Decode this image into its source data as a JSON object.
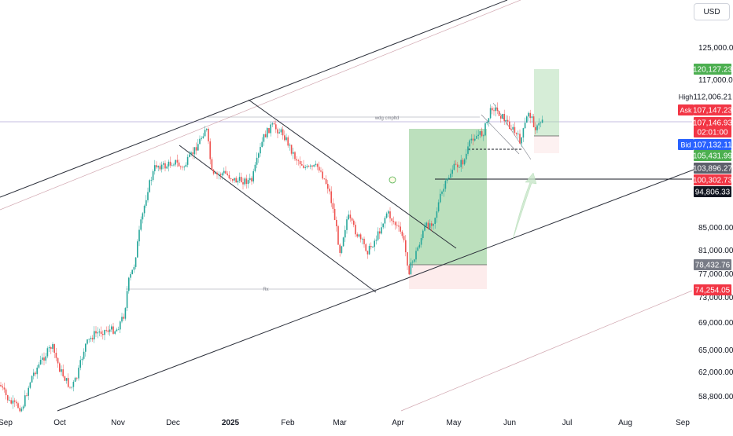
{
  "currency_button": "USD",
  "annotations": {
    "top_level_label": "wdg cmpltd",
    "bottom_level_label": "Rx"
  },
  "colors": {
    "up": "#26a69a",
    "down": "#ef5350",
    "trendline": "#2a2e39",
    "zone_green": "#a5d6a7",
    "zone_red": "#fbe0e0",
    "label_green": "#4caf50",
    "label_red": "#f23645",
    "label_blue": "#2962ff",
    "label_black": "#131722",
    "label_gray": "#787b86"
  },
  "chart_data": {
    "type": "candlestick",
    "symbol_currency": "USD",
    "x_axis_ticks": [
      "Sep",
      "Oct",
      "Nov",
      "Dec",
      "2025",
      "Feb",
      "Mar",
      "Apr",
      "May",
      "Jun",
      "Jul",
      "Aug",
      "Sep"
    ],
    "y_axis_ticks": [
      "125,000.00",
      "117,000.00",
      "85,000.00",
      "81,000.00",
      "77,000.00",
      "73,000.00",
      "69,000.00",
      "65,000.00",
      "62,000.00",
      "58,800.00"
    ],
    "price_labels": [
      {
        "text": "120,127.23",
        "role": "target"
      },
      {
        "prefix": "High",
        "text": "112,006.21",
        "role": "high"
      },
      {
        "prefix": "Ask",
        "text": "107,147.23",
        "role": "ask"
      },
      {
        "text": "107,146.93",
        "role": "last"
      },
      {
        "text": "02:01:00",
        "role": "countdown"
      },
      {
        "prefix": "Bid",
        "text": "107,132.11",
        "role": "bid"
      },
      {
        "text": "105,431.99",
        "role": "entry"
      },
      {
        "text": "103,896.27",
        "role": "level"
      },
      {
        "text": "100,302.73",
        "role": "stop"
      },
      {
        "text": "94,806.33",
        "role": "level"
      },
      {
        "text": "78,432.76",
        "role": "level"
      },
      {
        "text": "74,254.05",
        "role": "level"
      }
    ],
    "ohlc_monthly_approx": [
      {
        "month": "Sep 2024",
        "open": 58000,
        "close": 63000
      },
      {
        "month": "Oct 2024",
        "open": 63000,
        "close": 70000
      },
      {
        "month": "Nov 2024",
        "open": 70000,
        "close": 96000
      },
      {
        "month": "Dec 2024",
        "open": 96000,
        "close": 93000
      },
      {
        "month": "Jan 2025",
        "open": 93000,
        "close": 102000
      },
      {
        "month": "Feb 2025",
        "open": 102000,
        "close": 84000
      },
      {
        "month": "Mar 2025",
        "open": 84000,
        "close": 82000
      },
      {
        "month": "Apr 2025",
        "open": 82000,
        "close": 94000
      },
      {
        "month": "May 2025",
        "open": 94000,
        "close": 104000
      },
      {
        "month": "Jun 2025",
        "open": 104000,
        "close": 107146.93
      }
    ]
  }
}
